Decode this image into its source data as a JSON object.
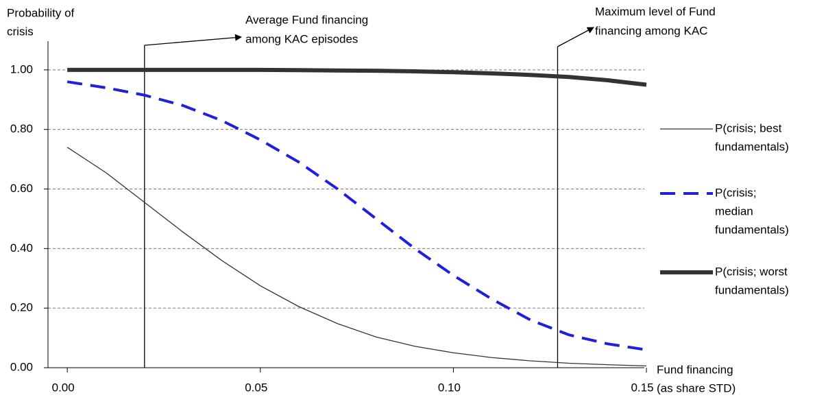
{
  "chart_data": {
    "type": "line",
    "y_label": [
      "Probability of",
      "crisis"
    ],
    "x_label": [
      "Fund financing",
      "(as share STD)"
    ],
    "x": [
      0,
      0.01,
      0.02,
      0.03,
      0.04,
      0.05,
      0.06,
      0.07,
      0.08,
      0.09,
      0.1,
      0.11,
      0.12,
      0.13,
      0.14,
      0.15
    ],
    "series": [
      {
        "name": [
          "P(crisis; best",
          "fundamentals)"
        ],
        "color": "#333333",
        "width": 1.3,
        "dash": "none",
        "values": [
          0.74,
          0.655,
          0.555,
          0.455,
          0.36,
          0.275,
          0.205,
          0.148,
          0.103,
          0.072,
          0.05,
          0.034,
          0.023,
          0.015,
          0.01,
          0.006
        ]
      },
      {
        "name": [
          "P(crisis;",
          "median",
          "fundamentals)"
        ],
        "color": "#1f1fdd",
        "width": 4,
        "dash": "22 12",
        "values": [
          0.96,
          0.94,
          0.915,
          0.88,
          0.83,
          0.765,
          0.69,
          0.6,
          0.5,
          0.4,
          0.31,
          0.23,
          0.16,
          0.11,
          0.08,
          0.06
        ]
      },
      {
        "name": [
          "P(crisis; worst",
          "fundamentals)"
        ],
        "color": "#333333",
        "width": 6,
        "dash": "none",
        "values": [
          1.0,
          1.0,
          1.0,
          1.0,
          1.0,
          1.0,
          0.999,
          0.998,
          0.997,
          0.995,
          0.992,
          0.988,
          0.983,
          0.976,
          0.965,
          0.95
        ]
      }
    ],
    "annotations": [
      {
        "x": 0.02,
        "label": [
          "Average Fund financing",
          "among KAC episodes"
        ]
      },
      {
        "x": 0.127,
        "label": [
          "Maximum level of Fund",
          "financing among KAC"
        ]
      }
    ],
    "xlim": [
      -0.005,
      0.15
    ],
    "ylim": [
      0,
      1.2
    ],
    "xticks": [
      {
        "value": 0,
        "label": "0.00"
      },
      {
        "value": 0.05,
        "label": "0.05"
      },
      {
        "value": 0.1,
        "label": "0.10"
      },
      {
        "value": 0.15,
        "label": "0.15"
      }
    ],
    "yticks": [
      {
        "value": 0,
        "label": "0.00"
      },
      {
        "value": 0.2,
        "label": "0.20"
      },
      {
        "value": 0.4,
        "label": "0.40"
      },
      {
        "value": 0.6,
        "label": "0.60"
      },
      {
        "value": 0.8,
        "label": "0.80"
      },
      {
        "value": 1.0,
        "label": "1.00"
      }
    ],
    "grid": true
  }
}
